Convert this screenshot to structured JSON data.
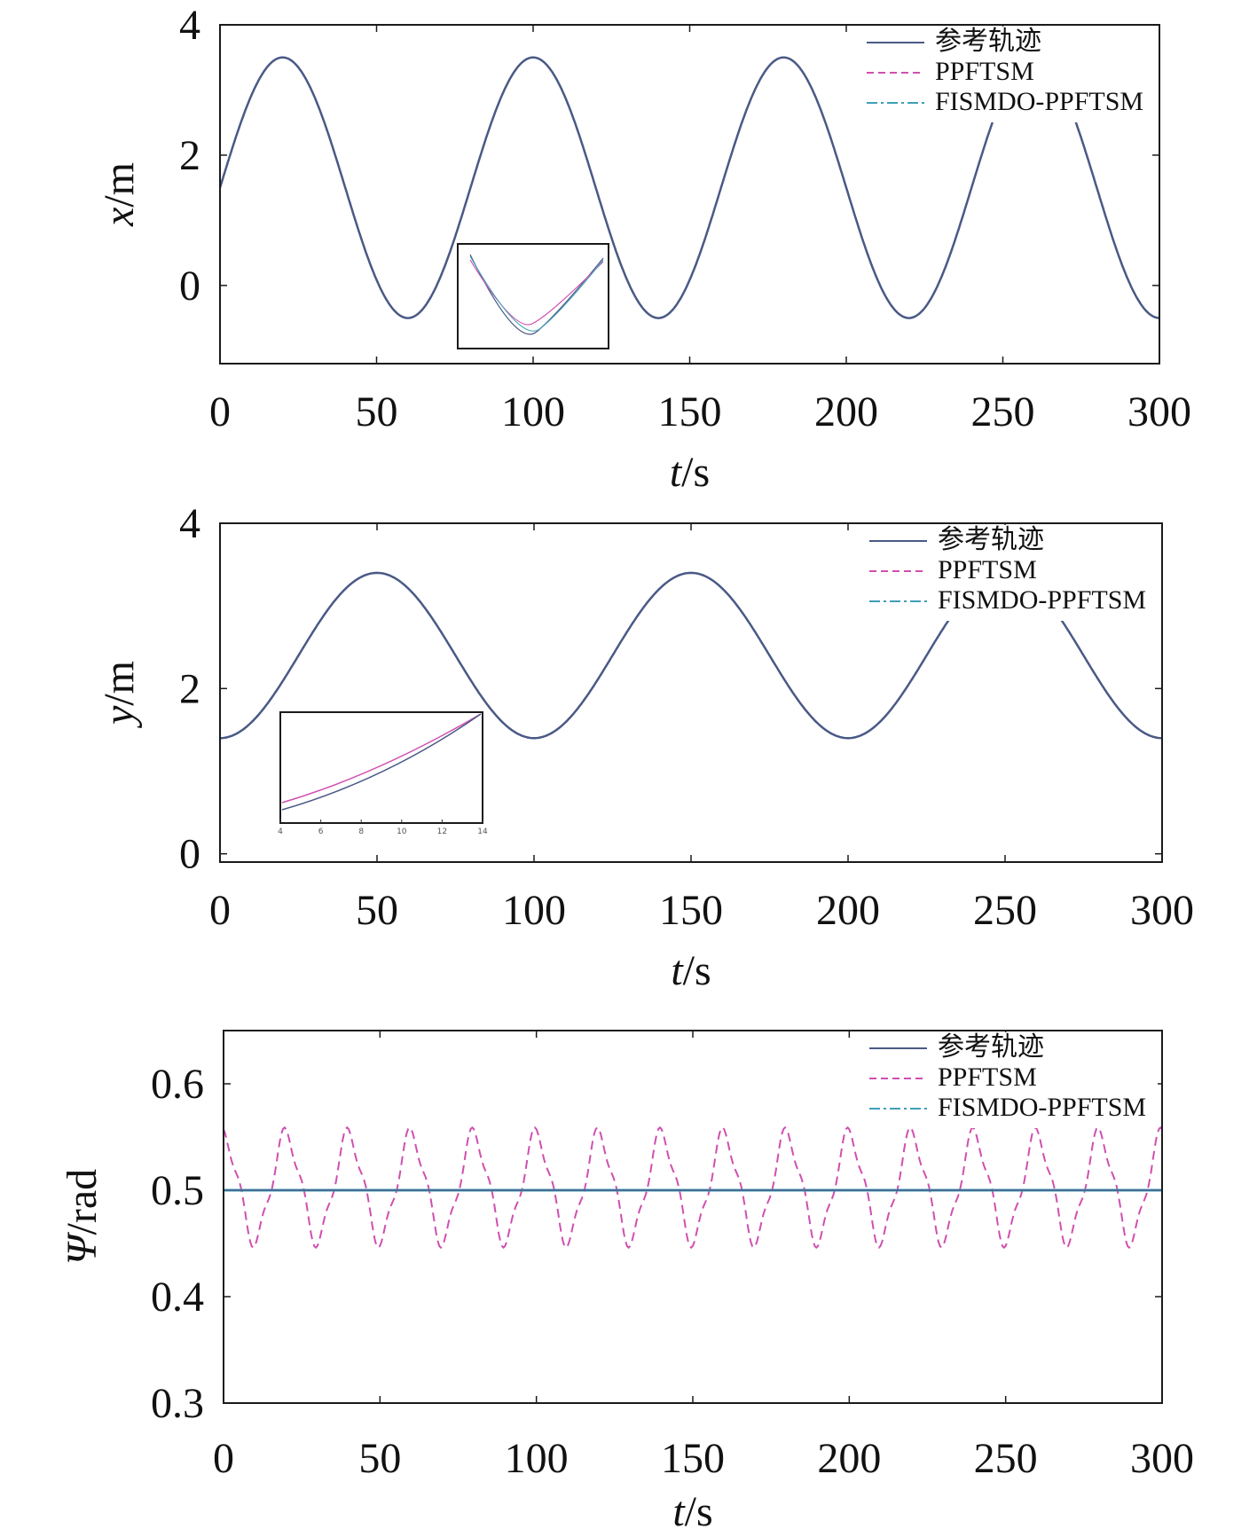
{
  "legend": {
    "labels": [
      "参考轨迹",
      "PPFTSM",
      "FISMDO-PPFTSM"
    ],
    "colors": [
      "#4a5a86",
      "#d04fb0",
      "#3f9fb8"
    ]
  },
  "chart_data": [
    {
      "type": "line",
      "xlabel_italic": "t",
      "xlabel_unit": "/s",
      "ylabel_italic": "x",
      "ylabel_unit": "/m",
      "xlim": [
        0,
        300
      ],
      "ylim": [
        -1.2,
        4
      ],
      "xticks": [
        0,
        50,
        100,
        150,
        200,
        250,
        300
      ],
      "yticks": [
        0,
        2,
        4
      ],
      "series": [
        {
          "name": "参考轨迹",
          "formula": "1.5 + 2*sin(2*pi*t/80)",
          "offset": 1.5,
          "amplitude": 2.0,
          "period": 80
        },
        {
          "name": "PPFTSM",
          "offset": 1.5,
          "amplitude": 2.0,
          "period": 80
        },
        {
          "name": "FISMDO-PPFTSM",
          "offset": 1.5,
          "amplitude": 2.0,
          "period": 80
        }
      ],
      "inset": {
        "xlabel": "",
        "note": "zoom near trough around t≈100"
      }
    },
    {
      "type": "line",
      "xlabel_italic": "t",
      "xlabel_unit": "/s",
      "ylabel_italic": "y",
      "ylabel_unit": "/m",
      "xlim": [
        0,
        300
      ],
      "ylim": [
        -0.1,
        4
      ],
      "xticks": [
        0,
        50,
        100,
        150,
        200,
        250,
        300
      ],
      "yticks": [
        0,
        2,
        4
      ],
      "series": [
        {
          "name": "参考轨迹",
          "formula": "2.4 - 1*cos(2*pi*t/100)",
          "offset": 2.4,
          "amplitude": 1.0,
          "period": 100
        },
        {
          "name": "PPFTSM",
          "offset": 2.4,
          "amplitude": 1.0,
          "period": 100
        },
        {
          "name": "FISMDO-PPFTSM",
          "offset": 2.4,
          "amplitude": 1.0,
          "period": 100
        }
      ],
      "inset": {
        "xticks": [
          "4",
          "6",
          "8",
          "10",
          "12",
          "14"
        ]
      }
    },
    {
      "type": "line",
      "xlabel_italic": "t",
      "xlabel_unit": "/s",
      "ylabel_italic": "Ψ",
      "ylabel_unit": "/rad",
      "xlim": [
        0,
        300
      ],
      "ylim": [
        0.3,
        0.65
      ],
      "xticks": [
        0,
        50,
        100,
        150,
        200,
        250,
        300
      ],
      "yticks": [
        0.3,
        0.4,
        0.5,
        0.6
      ],
      "series": [
        {
          "name": "参考轨迹",
          "constant": 0.5
        },
        {
          "name": "PPFTSM",
          "oscillation_center": 0.5,
          "max": 0.56,
          "min": 0.445,
          "period": 20
        },
        {
          "name": "FISMDO-PPFTSM",
          "constant": 0.5
        }
      ]
    }
  ]
}
